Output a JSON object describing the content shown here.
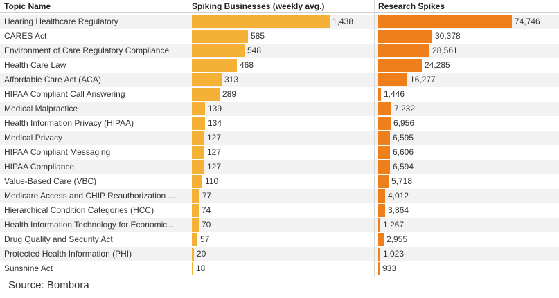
{
  "chart_data": {
    "type": "table",
    "columns": {
      "topic": "Topic Name",
      "spiking": "Spiking Businesses (weekly avg.)",
      "research": "Research Spikes"
    },
    "colors": {
      "spiking": "#f5b135",
      "research": "#ef7f1a",
      "row_alt": "#f2f2f2"
    },
    "rows": [
      {
        "topic": "Hearing Healthcare Regulatory",
        "spiking": 1438,
        "spiking_label": "1,438",
        "research": 74746,
        "research_label": "74,746"
      },
      {
        "topic": "CARES Act",
        "spiking": 585,
        "spiking_label": "585",
        "research": 30378,
        "research_label": "30,378"
      },
      {
        "topic": "Environment of Care Regulatory Compliance",
        "spiking": 548,
        "spiking_label": "548",
        "research": 28561,
        "research_label": "28,561"
      },
      {
        "topic": "Health Care Law",
        "spiking": 468,
        "spiking_label": "468",
        "research": 24285,
        "research_label": "24,285"
      },
      {
        "topic": "Affordable Care Act (ACA)",
        "spiking": 313,
        "spiking_label": "313",
        "research": 16277,
        "research_label": "16,277"
      },
      {
        "topic": "HIPAA Compliant Call Answering",
        "spiking": 289,
        "spiking_label": "289",
        "research": 1446,
        "research_label": "1,446"
      },
      {
        "topic": "Medical Malpractice",
        "spiking": 139,
        "spiking_label": "139",
        "research": 7232,
        "research_label": "7,232"
      },
      {
        "topic": "Health Information Privacy (HIPAA)",
        "spiking": 134,
        "spiking_label": "134",
        "research": 6956,
        "research_label": "6,956"
      },
      {
        "topic": "Medical Privacy",
        "spiking": 127,
        "spiking_label": "127",
        "research": 6595,
        "research_label": "6,595"
      },
      {
        "topic": "HIPAA Compliant Messaging",
        "spiking": 127,
        "spiking_label": "127",
        "research": 6606,
        "research_label": "6,606"
      },
      {
        "topic": "HIPAA Compliance",
        "spiking": 127,
        "spiking_label": "127",
        "research": 6594,
        "research_label": "6,594"
      },
      {
        "topic": "Value-Based Care (VBC)",
        "spiking": 110,
        "spiking_label": "110",
        "research": 5718,
        "research_label": "5,718"
      },
      {
        "topic": "Medicare Access and CHIP Reauthorization ...",
        "spiking": 77,
        "spiking_label": "77",
        "research": 4012,
        "research_label": "4,012"
      },
      {
        "topic": "Hierarchical Condition Categories (HCC)",
        "spiking": 74,
        "spiking_label": "74",
        "research": 3864,
        "research_label": "3,864"
      },
      {
        "topic": "Health Information Technology for Economic...",
        "spiking": 70,
        "spiking_label": "70",
        "research": 1267,
        "research_label": "1,267"
      },
      {
        "topic": "Drug Quality and Security Act",
        "spiking": 57,
        "spiking_label": "57",
        "research": 2955,
        "research_label": "2,955"
      },
      {
        "topic": "Protected Health Information (PHI)",
        "spiking": 20,
        "spiking_label": "20",
        "research": 1023,
        "research_label": "1,023"
      },
      {
        "topic": "Sunshine Act",
        "spiking": 18,
        "spiking_label": "18",
        "research": 933,
        "research_label": "933"
      }
    ],
    "source": "Source: Bombora"
  }
}
